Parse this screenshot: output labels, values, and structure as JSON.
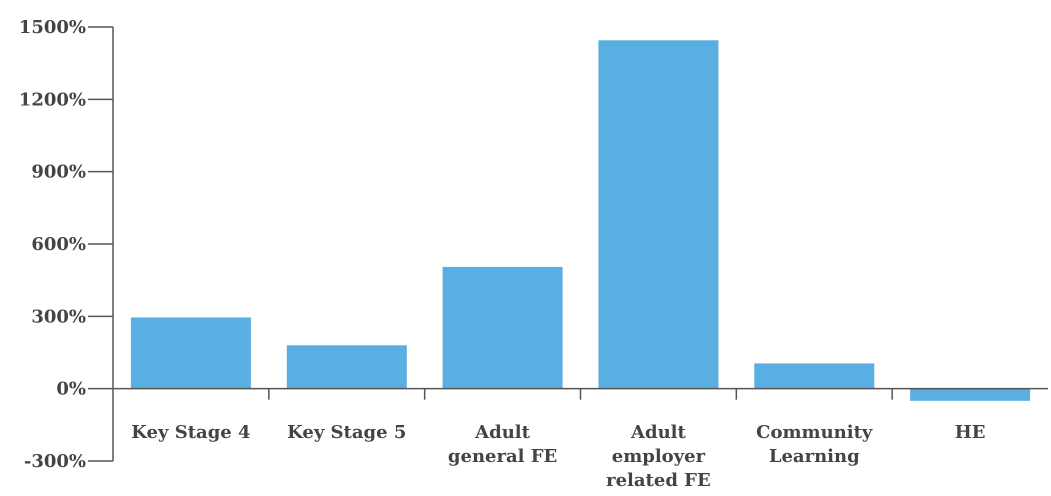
{
  "chart_data": {
    "type": "bar",
    "title": "",
    "xlabel": "",
    "ylabel": "",
    "categories": [
      [
        "Key Stage 4"
      ],
      [
        "Key Stage 5"
      ],
      [
        "Adult",
        "general FE"
      ],
      [
        "Adult",
        "employer",
        "related FE"
      ],
      [
        "Community",
        "Learning"
      ],
      [
        "HE"
      ]
    ],
    "values": [
      295,
      180,
      505,
      1445,
      105,
      -50
    ],
    "ylim": [
      -300,
      1500
    ],
    "yticks": [
      -300,
      0,
      300,
      600,
      900,
      1200,
      1500
    ],
    "ytick_labels": [
      "-300%",
      "0%",
      "300%",
      "600%",
      "900%",
      "1200%",
      "1500%"
    ],
    "grid": false,
    "legend": "none",
    "colors": {
      "bar": "#59aee2",
      "axis": "#555555",
      "text": "#444444"
    }
  }
}
